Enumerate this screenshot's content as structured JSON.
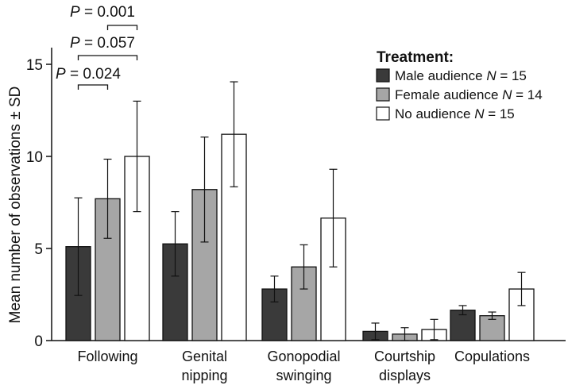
{
  "chart_data": {
    "type": "bar",
    "ylabel": "Mean number of observations ± SD",
    "xlabel": "",
    "ylim": [
      0,
      15
    ],
    "yticks": [
      0,
      5,
      10,
      15
    ],
    "categories": [
      [
        "Following"
      ],
      [
        "Genital",
        "nipping"
      ],
      [
        "Gonopodial",
        "swinging"
      ],
      [
        "Courtship",
        "displays"
      ],
      [
        "Copulations"
      ]
    ],
    "legend": {
      "title": "Treatment:",
      "placement": "top-right"
    },
    "series": [
      {
        "name": "Male audience",
        "n_label": "N = 15",
        "color": "#3a3a3a",
        "values": [
          5.1,
          5.25,
          2.8,
          0.5,
          1.65
        ],
        "sd": [
          2.65,
          1.75,
          0.7,
          0.45,
          0.25
        ]
      },
      {
        "name": "Female audience",
        "n_label": "N = 14",
        "color": "#a6a6a6",
        "values": [
          7.7,
          8.2,
          4.0,
          0.35,
          1.35
        ],
        "sd": [
          2.15,
          2.85,
          1.2,
          0.35,
          0.2
        ]
      },
      {
        "name": "No audience",
        "n_label": "N = 15",
        "color": "#ffffff",
        "values": [
          10.0,
          11.2,
          6.65,
          0.6,
          2.8
        ],
        "sd": [
          3.0,
          2.85,
          2.65,
          0.55,
          0.9
        ]
      }
    ],
    "annotations": [
      {
        "text_prefix": "P",
        "text_rest": " = 0.001",
        "category": 0,
        "from": 1,
        "to": 2
      },
      {
        "text_prefix": "P",
        "text_rest": " = 0.057",
        "category": 0,
        "from": 0,
        "to": 2
      },
      {
        "text_prefix": "P",
        "text_rest": " = 0.024",
        "category": 0,
        "from": 0,
        "to": 1
      }
    ]
  }
}
